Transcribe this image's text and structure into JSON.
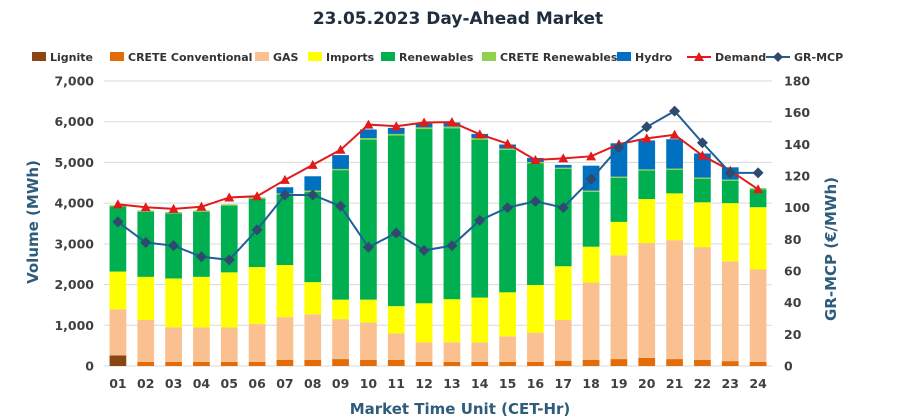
{
  "chart_data": {
    "type": "bar",
    "title": "23.05.2023  Day-Ahead Market",
    "xlabel": "Market Time Unit (CET-Hr)",
    "ylabel": "Volume (MWh)",
    "y2label": "GR-MCP (€/MWh)",
    "ylim": [
      0,
      7000
    ],
    "y2lim": [
      0,
      180
    ],
    "yticks": [
      0,
      1000,
      2000,
      3000,
      4000,
      5000,
      6000,
      7000
    ],
    "yticklabels": [
      "0",
      "1,000",
      "2,000",
      "3,000",
      "4,000",
      "5,000",
      "6,000",
      "7,000"
    ],
    "y2ticks": [
      0,
      20,
      40,
      60,
      80,
      100,
      120,
      140,
      160,
      180
    ],
    "grid": true,
    "legend_position": "top",
    "categories": [
      "01",
      "02",
      "03",
      "04",
      "05",
      "06",
      "07",
      "08",
      "09",
      "10",
      "11",
      "12",
      "13",
      "14",
      "15",
      "16",
      "17",
      "18",
      "19",
      "20",
      "21",
      "22",
      "23",
      "24"
    ],
    "stacked_series": [
      {
        "name": "Lignite",
        "color": "#8B4513",
        "values": [
          260,
          0,
          0,
          0,
          0,
          0,
          0,
          0,
          0,
          0,
          0,
          0,
          0,
          0,
          0,
          0,
          0,
          0,
          0,
          0,
          0,
          0,
          0,
          0
        ]
      },
      {
        "name": "CRETE Conventional",
        "color": "#E36C09",
        "values": [
          0,
          100,
          100,
          100,
          100,
          100,
          150,
          150,
          170,
          150,
          150,
          100,
          100,
          100,
          100,
          100,
          130,
          150,
          170,
          200,
          170,
          150,
          120,
          100
        ]
      },
      {
        "name": "GAS",
        "color": "#FAC090",
        "values": [
          1130,
          1030,
          850,
          850,
          850,
          930,
          1050,
          1120,
          980,
          920,
          650,
          480,
          480,
          480,
          630,
          720,
          1000,
          1900,
          2550,
          2820,
          2920,
          2770,
          2450,
          2270
        ]
      },
      {
        "name": "Imports",
        "color": "#FFFF00",
        "values": [
          930,
          1060,
          1200,
          1240,
          1350,
          1400,
          1280,
          790,
          480,
          560,
          670,
          960,
          1060,
          1100,
          1080,
          1170,
          1320,
          880,
          820,
          1080,
          1150,
          1100,
          1430,
          1530
        ]
      },
      {
        "name": "Renewables",
        "color": "#00B050",
        "values": [
          1600,
          1600,
          1600,
          1600,
          1640,
          1680,
          1730,
          2220,
          3180,
          3930,
          4190,
          4280,
          4200,
          3880,
          3500,
          2990,
          2390,
          1350,
          1080,
          700,
          580,
          580,
          550,
          440
        ]
      },
      {
        "name": "CRETE Renewables",
        "color": "#92D050",
        "values": [
          30,
          30,
          30,
          30,
          30,
          30,
          30,
          30,
          30,
          40,
          40,
          40,
          40,
          40,
          30,
          30,
          30,
          30,
          30,
          30,
          30,
          30,
          30,
          30
        ]
      },
      {
        "name": "Hydro",
        "color": "#0070C0",
        "values": [
          0,
          0,
          0,
          0,
          0,
          0,
          150,
          350,
          340,
          210,
          150,
          100,
          100,
          100,
          100,
          100,
          70,
          610,
          820,
          710,
          720,
          590,
          300,
          0
        ]
      }
    ],
    "lines": [
      {
        "name": "Demand",
        "axis": "left",
        "color": "#E31A1C",
        "marker": "triangle",
        "values": [
          3970,
          3900,
          3860,
          3910,
          4140,
          4170,
          4570,
          4940,
          5310,
          5930,
          5890,
          5980,
          5990,
          5690,
          5460,
          5060,
          5100,
          5150,
          5450,
          5590,
          5680,
          5170,
          4800,
          4340
        ]
      },
      {
        "name": "GR-MCP",
        "axis": "right",
        "color": "#1F5F96",
        "marker": "diamond",
        "values": [
          91,
          78,
          76,
          69,
          67,
          86,
          108,
          108,
          101,
          75,
          84,
          73,
          76,
          92,
          100,
          104,
          100,
          118,
          138,
          151,
          161,
          141,
          122,
          122
        ]
      }
    ]
  }
}
